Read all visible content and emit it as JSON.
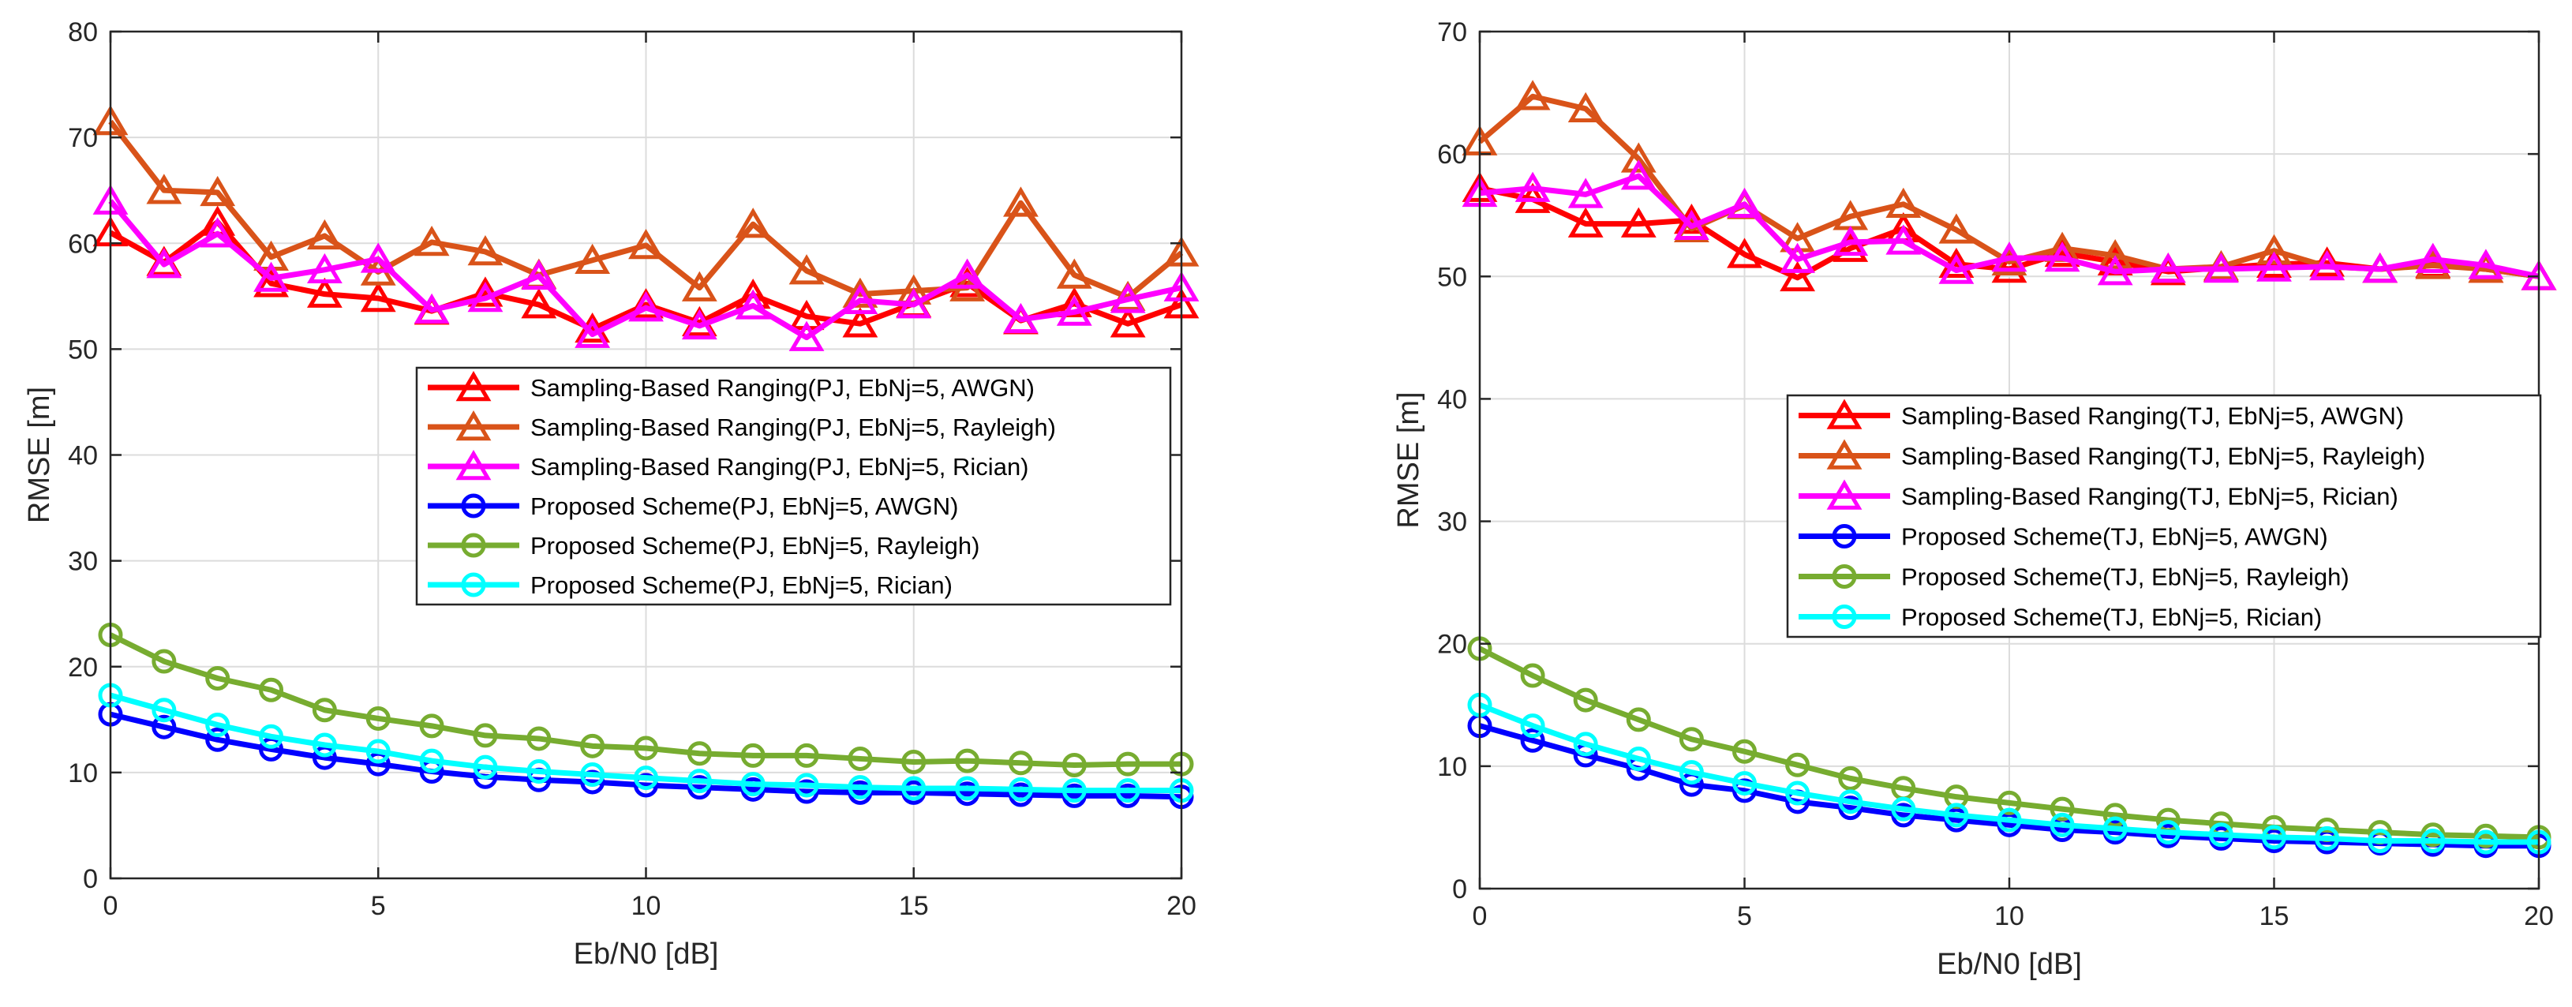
{
  "chart_data": [
    {
      "type": "line",
      "xlabel": "Eb/N0 [dB]",
      "ylabel": "RMSE [m]",
      "xlim": [
        0,
        20
      ],
      "ylim": [
        0,
        80
      ],
      "xticks": [
        0,
        5,
        10,
        15,
        20
      ],
      "yticks": [
        0,
        10,
        20,
        30,
        40,
        50,
        60,
        70,
        80
      ],
      "grid": true,
      "legend_location": "center-right",
      "x": [
        0,
        1,
        2,
        3,
        4,
        5,
        6,
        7,
        8,
        9,
        10,
        11,
        12,
        13,
        14,
        15,
        16,
        17,
        18,
        19,
        20
      ],
      "series": [
        {
          "name": "Sampling-Based Ranging(PJ, EbNj=5, AWGN)",
          "color": "#ff0000",
          "marker": "triangle",
          "values": [
            61,
            58.2,
            62,
            56.2,
            55.2,
            54.8,
            53.6,
            55.3,
            54.2,
            51.9,
            54.2,
            52.5,
            55.1,
            53.1,
            52.4,
            54.3,
            56.2,
            52.7,
            54.3,
            52.4,
            54.2
          ]
        },
        {
          "name": "Sampling-Based Ranging(PJ, EbNj=5, Rayleigh)",
          "color": "#d95319",
          "marker": "triangle",
          "values": [
            71.5,
            65,
            64.8,
            58.7,
            60.7,
            57.3,
            60.1,
            59.2,
            57,
            58.4,
            59.8,
            55.8,
            61.8,
            57.4,
            55.2,
            55.5,
            55.8,
            63.8,
            57,
            54.9,
            59.1
          ]
        },
        {
          "name": "Sampling-Based Ranging(PJ, EbNj=5, Rician)",
          "color": "#ff00ff",
          "marker": "triangle",
          "values": [
            64,
            58,
            60.9,
            56.7,
            57.5,
            58.5,
            53.7,
            54.8,
            56.9,
            51.4,
            53.9,
            52.2,
            54.1,
            51.1,
            54.6,
            54.2,
            57,
            52.8,
            53.5,
            54.7,
            55.8
          ]
        },
        {
          "name": "Proposed Scheme(PJ, EbNj=5, AWGN)",
          "color": "#0000ff",
          "marker": "circle",
          "values": [
            15.5,
            14.3,
            13.1,
            12.2,
            11.4,
            10.8,
            10.1,
            9.6,
            9.3,
            9.1,
            8.8,
            8.6,
            8.4,
            8.2,
            8.1,
            8.1,
            8.0,
            7.9,
            7.8,
            7.8,
            7.7
          ]
        },
        {
          "name": "Proposed Scheme(PJ, EbNj=5, Rayleigh)",
          "color": "#77ac30",
          "marker": "circle",
          "values": [
            23,
            20.5,
            18.9,
            17.8,
            15.9,
            15.1,
            14.4,
            13.5,
            13.2,
            12.5,
            12.3,
            11.8,
            11.6,
            11.6,
            11.3,
            11.0,
            11.1,
            10.9,
            10.7,
            10.8,
            10.8
          ]
        },
        {
          "name": "Proposed Scheme(PJ, EbNj=5, Rician)",
          "color": "#00ffff",
          "marker": "circle",
          "values": [
            17.3,
            15.9,
            14.5,
            13.4,
            12.6,
            12.0,
            11.1,
            10.5,
            10.1,
            9.8,
            9.5,
            9.2,
            8.9,
            8.8,
            8.6,
            8.5,
            8.5,
            8.4,
            8.3,
            8.3,
            8.3
          ]
        }
      ]
    },
    {
      "type": "line",
      "xlabel": "Eb/N0 [dB]",
      "ylabel": "RMSE [m]",
      "xlim": [
        0,
        20
      ],
      "ylim": [
        0,
        70
      ],
      "xticks": [
        0,
        5,
        10,
        15,
        20
      ],
      "yticks": [
        0,
        10,
        20,
        30,
        40,
        50,
        60,
        70
      ],
      "grid": true,
      "legend_location": "center-right",
      "x": [
        0,
        1,
        2,
        3,
        4,
        5,
        6,
        7,
        8,
        9,
        10,
        11,
        12,
        13,
        14,
        15,
        16,
        17,
        18,
        19,
        20
      ],
      "series": [
        {
          "name": "Sampling-Based Ranging(TJ, EbNj=5, AWGN)",
          "color": "#ff0000",
          "marker": "triangle",
          "values": [
            57.2,
            56.3,
            54.3,
            54.3,
            54.6,
            51.8,
            49.9,
            52.3,
            53.9,
            51,
            50.6,
            51.9,
            51.2,
            50.4,
            50.7,
            51,
            51.1,
            50.6,
            51,
            50.6,
            50
          ]
        },
        {
          "name": "Sampling-Based Ranging(TJ, EbNj=5, Rayleigh)",
          "color": "#d95319",
          "marker": "triangle",
          "values": [
            61,
            64.7,
            63.7,
            59.6,
            53.9,
            55.8,
            53.1,
            54.9,
            55.9,
            53.8,
            51.2,
            52.3,
            51.7,
            50.6,
            50.8,
            52.1,
            50.8,
            50.6,
            50.9,
            50.6,
            50
          ]
        },
        {
          "name": "Sampling-Based Ranging(TJ, EbNj=5, Rician)",
          "color": "#ff00ff",
          "marker": "triangle",
          "values": [
            56.8,
            57.2,
            56.7,
            58.2,
            54.1,
            55.9,
            51.4,
            52.8,
            52.9,
            50.5,
            51.5,
            51.5,
            50.4,
            50.6,
            50.6,
            50.7,
            50.8,
            50.6,
            51.4,
            50.9,
            50
          ]
        },
        {
          "name": "Proposed Scheme(TJ, EbNj=5, AWGN)",
          "color": "#0000ff",
          "marker": "circle",
          "values": [
            13.3,
            12.1,
            10.9,
            9.8,
            8.5,
            8.0,
            7.1,
            6.6,
            6.0,
            5.6,
            5.2,
            4.8,
            4.6,
            4.3,
            4.1,
            3.9,
            3.8,
            3.7,
            3.6,
            3.5,
            3.5
          ]
        },
        {
          "name": "Proposed Scheme(TJ, EbNj=5, Rayleigh)",
          "color": "#77ac30",
          "marker": "circle",
          "values": [
            19.6,
            17.4,
            15.4,
            13.8,
            12.2,
            11.2,
            10.1,
            9.0,
            8.2,
            7.5,
            7.0,
            6.5,
            6.0,
            5.6,
            5.3,
            5.0,
            4.8,
            4.6,
            4.4,
            4.3,
            4.2
          ]
        },
        {
          "name": "Proposed Scheme(TJ, EbNj=5, Rician)",
          "color": "#00ffff",
          "marker": "circle",
          "values": [
            15.0,
            13.3,
            11.8,
            10.6,
            9.5,
            8.6,
            7.8,
            7.1,
            6.5,
            6.0,
            5.6,
            5.2,
            4.9,
            4.6,
            4.4,
            4.2,
            4.1,
            3.9,
            3.9,
            3.8,
            3.8
          ]
        }
      ]
    }
  ]
}
